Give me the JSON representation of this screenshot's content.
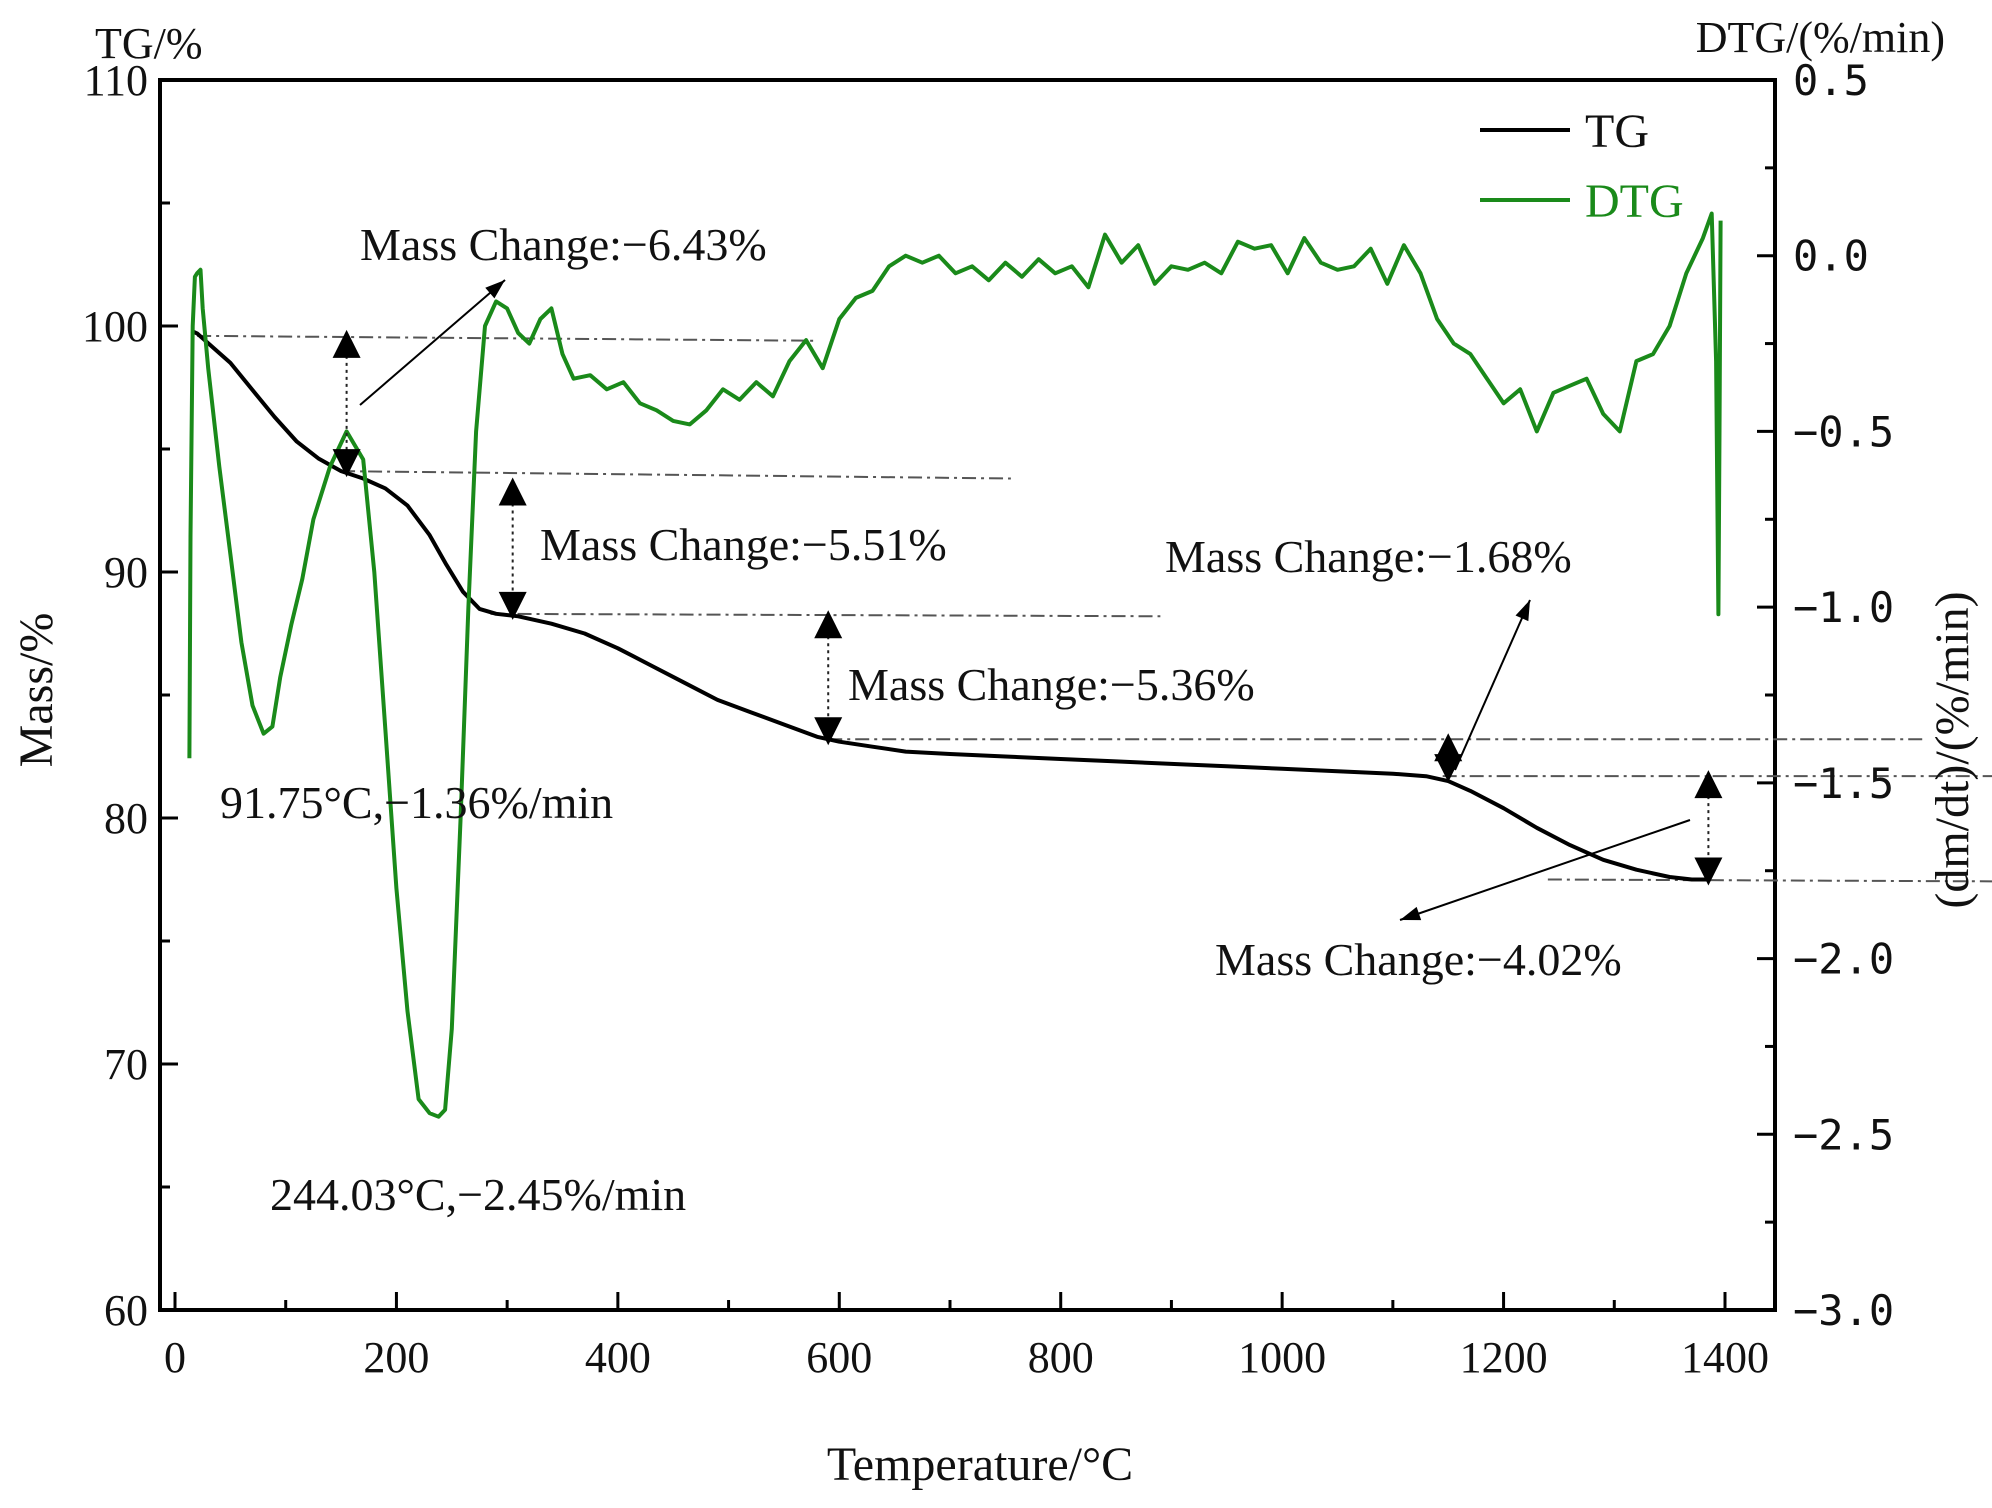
{
  "chart_data": {
    "type": "line",
    "title": "",
    "xlabel": "Temperature/°C",
    "ylabel_left": "Mass/%",
    "ylabel_left_top": "TG/%",
    "ylabel_right": "(dm/dt)/(%/min)",
    "ylabel_right_top": "DTG/(%/min)",
    "xlim": [
      0,
      1440
    ],
    "ylim_left": [
      60,
      110
    ],
    "ylim_right": [
      -3.0,
      0.5
    ],
    "x_ticks": [
      0,
      200,
      400,
      600,
      800,
      1000,
      1200,
      1400
    ],
    "x_tick_labels": [
      "0",
      "200",
      "400",
      "600",
      "800",
      "1000",
      "1200",
      "1400"
    ],
    "y_left_ticks": [
      60,
      70,
      80,
      90,
      100,
      110
    ],
    "y_left_tick_labels": [
      "60",
      "70",
      "80",
      "90",
      "100",
      "110"
    ],
    "y_right_ticks": [
      0.5,
      0.0,
      -0.5,
      -1.0,
      -1.5,
      -2.0,
      -2.5,
      -3.0
    ],
    "y_right_tick_labels": [
      "0.5",
      "0.0",
      "−0.5",
      "−1.0",
      "−1.5",
      "−2.0",
      "−2.5",
      "−3.0"
    ],
    "legend": {
      "position": "top-right",
      "entries": [
        {
          "name": "TG",
          "color": "#000000"
        },
        {
          "name": "DTG",
          "color": "#1a8a1a"
        }
      ]
    },
    "series": [
      {
        "name": "TG",
        "axis": "left",
        "color": "#000000",
        "x": [
          15,
          20,
          30,
          50,
          70,
          90,
          110,
          130,
          150,
          170,
          190,
          210,
          230,
          245,
          260,
          275,
          290,
          310,
          340,
          370,
          400,
          430,
          460,
          490,
          520,
          550,
          580,
          600,
          630,
          660,
          700,
          750,
          800,
          850,
          900,
          950,
          1000,
          1050,
          1100,
          1130,
          1150,
          1170,
          1200,
          1230,
          1260,
          1290,
          1320,
          1350,
          1370,
          1385
        ],
        "y": [
          99.8,
          99.7,
          99.3,
          98.5,
          97.4,
          96.3,
          95.3,
          94.6,
          94.1,
          93.8,
          93.4,
          92.7,
          91.5,
          90.3,
          89.2,
          88.5,
          88.3,
          88.2,
          87.9,
          87.5,
          86.9,
          86.2,
          85.5,
          84.8,
          84.3,
          83.8,
          83.3,
          83.1,
          82.9,
          82.7,
          82.6,
          82.5,
          82.4,
          82.3,
          82.2,
          82.1,
          82.0,
          81.9,
          81.8,
          81.7,
          81.5,
          81.1,
          80.4,
          79.6,
          78.9,
          78.3,
          77.9,
          77.6,
          77.5,
          77.5
        ]
      },
      {
        "name": "DTG",
        "axis": "right",
        "color": "#1a8a1a",
        "x": [
          13,
          14,
          16,
          18,
          20,
          23,
          25,
          30,
          40,
          50,
          60,
          70,
          80,
          88,
          95,
          105,
          115,
          125,
          140,
          155,
          170,
          180,
          190,
          200,
          210,
          220,
          230,
          238,
          244,
          250,
          258,
          265,
          272,
          280,
          290,
          300,
          310,
          320,
          330,
          340,
          350,
          360,
          375,
          390,
          405,
          420,
          435,
          450,
          465,
          480,
          495,
          510,
          525,
          540,
          555,
          570,
          585,
          600,
          615,
          630,
          645,
          660,
          675,
          690,
          705,
          720,
          735,
          750,
          765,
          780,
          795,
          810,
          825,
          840,
          855,
          870,
          885,
          900,
          915,
          930,
          945,
          960,
          975,
          990,
          1005,
          1020,
          1035,
          1050,
          1065,
          1080,
          1095,
          1110,
          1125,
          1140,
          1155,
          1170,
          1185,
          1200,
          1215,
          1230,
          1245,
          1260,
          1275,
          1290,
          1305,
          1320,
          1335,
          1350,
          1365,
          1380,
          1388,
          1392,
          1394,
          1395,
          1396
        ],
        "y": [
          -1.43,
          -0.8,
          -0.2,
          -0.06,
          -0.05,
          -0.04,
          -0.15,
          -0.32,
          -0.6,
          -0.85,
          -1.1,
          -1.28,
          -1.36,
          -1.34,
          -1.2,
          -1.05,
          -0.92,
          -0.75,
          -0.6,
          -0.5,
          -0.58,
          -0.9,
          -1.35,
          -1.8,
          -2.15,
          -2.4,
          -2.44,
          -2.45,
          -2.43,
          -2.2,
          -1.6,
          -1.0,
          -0.5,
          -0.2,
          -0.13,
          -0.15,
          -0.22,
          -0.25,
          -0.18,
          -0.15,
          -0.28,
          -0.35,
          -0.34,
          -0.38,
          -0.36,
          -0.42,
          -0.44,
          -0.47,
          -0.48,
          -0.44,
          -0.38,
          -0.41,
          -0.36,
          -0.4,
          -0.3,
          -0.24,
          -0.32,
          -0.18,
          -0.12,
          -0.1,
          -0.03,
          0.0,
          -0.02,
          0.0,
          -0.05,
          -0.03,
          -0.07,
          -0.02,
          -0.06,
          -0.01,
          -0.05,
          -0.03,
          -0.09,
          0.06,
          -0.02,
          0.03,
          -0.08,
          -0.03,
          -0.04,
          -0.02,
          -0.05,
          0.04,
          0.02,
          0.03,
          -0.05,
          0.05,
          -0.02,
          -0.04,
          -0.03,
          0.02,
          -0.08,
          0.03,
          -0.05,
          -0.18,
          -0.25,
          -0.28,
          -0.35,
          -0.42,
          -0.38,
          -0.5,
          -0.39,
          -0.37,
          -0.35,
          -0.45,
          -0.5,
          -0.3,
          -0.28,
          -0.2,
          -0.05,
          0.05,
          0.12,
          -0.3,
          -1.02,
          -0.5,
          0.1
        ]
      }
    ],
    "annotations": [
      {
        "text": "Mass Change:−6.43%",
        "role": "mass-change-1"
      },
      {
        "text": "Mass Change:−5.51%",
        "role": "mass-change-2"
      },
      {
        "text": "Mass Change:−5.36%",
        "role": "mass-change-3"
      },
      {
        "text": "Mass Change:−1.68%",
        "role": "mass-change-4"
      },
      {
        "text": "Mass Change:−4.02%",
        "role": "mass-change-5"
      },
      {
        "text": "91.75°C,−1.36%/min",
        "role": "peak-1"
      },
      {
        "text": "244.03°C,−2.45%/min",
        "role": "peak-2"
      }
    ]
  }
}
